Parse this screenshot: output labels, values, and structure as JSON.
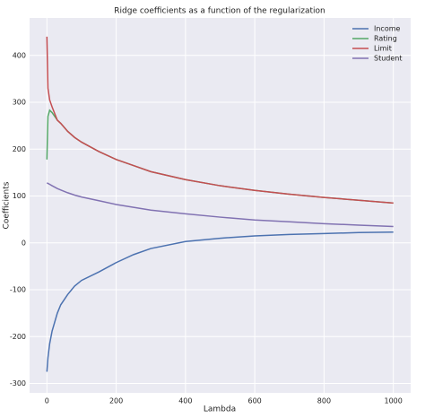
{
  "chart_data": {
    "type": "line",
    "title": "Ridge coefficients as a function of the regularization",
    "x_label": "Lambda",
    "y_label": "Coefficients",
    "x": [
      0,
      3,
      8,
      15,
      30,
      40,
      60,
      80,
      100,
      150,
      200,
      250,
      300,
      400,
      500,
      600,
      700,
      800,
      900,
      1000
    ],
    "series": [
      {
        "name": "Income",
        "color": "#4c72b0",
        "values": [
          -275,
          -245,
          -215,
          -188,
          -150,
          -132,
          -110,
          -92,
          -80,
          -62,
          -42,
          -25,
          -12,
          3,
          10,
          15,
          18,
          20,
          22,
          23
        ]
      },
      {
        "name": "Rating",
        "color": "#55a868",
        "values": [
          178,
          270,
          283,
          278,
          262,
          255,
          238,
          225,
          215,
          195,
          178,
          165,
          152,
          135,
          122,
          112,
          104,
          97,
          91,
          85
        ]
      },
      {
        "name": "Limit",
        "color": "#c44e52",
        "values": [
          440,
          330,
          305,
          290,
          262,
          255,
          238,
          225,
          215,
          195,
          178,
          165,
          152,
          135,
          122,
          112,
          104,
          97,
          91,
          85
        ]
      },
      {
        "name": "Student",
        "color": "#8172b2",
        "values": [
          128,
          127,
          125,
          122,
          116,
          113,
          107,
          102,
          98,
          90,
          82,
          76,
          70,
          62,
          55,
          49,
          45,
          41,
          38,
          35
        ]
      }
    ],
    "xlim": [
      -50,
      1050
    ],
    "ylim": [
      -320,
      480
    ],
    "xticks": [
      0,
      200,
      400,
      600,
      800,
      1000
    ],
    "yticks": [
      -300,
      -200,
      -100,
      0,
      100,
      200,
      300,
      400
    ],
    "grid": true,
    "legend": "upper-right"
  }
}
